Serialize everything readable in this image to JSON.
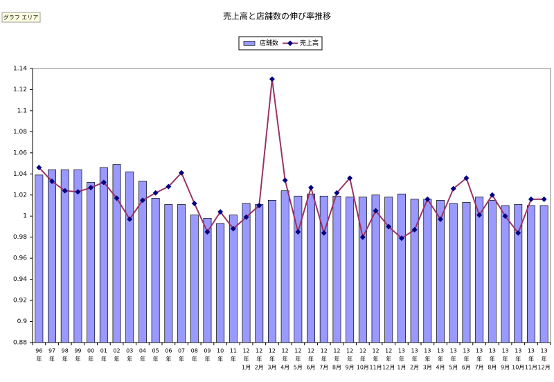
{
  "tooltip": "グラフ エリア",
  "chart_data": {
    "type": "combo",
    "title": "売上高と店舗数の伸び率推移",
    "categories": [
      [
        "96",
        "年"
      ],
      [
        "97",
        "年"
      ],
      [
        "98",
        "年"
      ],
      [
        "99",
        "年"
      ],
      [
        "00",
        "年"
      ],
      [
        "01",
        "年"
      ],
      [
        "02",
        "年"
      ],
      [
        "03",
        "年"
      ],
      [
        "04",
        "年"
      ],
      [
        "05",
        "年"
      ],
      [
        "06",
        "年"
      ],
      [
        "07",
        "年"
      ],
      [
        "08",
        "年"
      ],
      [
        "09",
        "年"
      ],
      [
        "10",
        "年"
      ],
      [
        "11",
        "年"
      ],
      [
        "12",
        "年",
        "1月"
      ],
      [
        "12",
        "年",
        "2月"
      ],
      [
        "12",
        "年",
        "3月"
      ],
      [
        "12",
        "年",
        "4月"
      ],
      [
        "12",
        "年",
        "5月"
      ],
      [
        "12",
        "年",
        "6月"
      ],
      [
        "12",
        "年",
        "7月"
      ],
      [
        "12",
        "年",
        "8月"
      ],
      [
        "12",
        "年",
        "9月"
      ],
      [
        "12",
        "年",
        "10月"
      ],
      [
        "12",
        "年",
        "11月"
      ],
      [
        "12",
        "年",
        "12月"
      ],
      [
        "13",
        "年",
        "1月"
      ],
      [
        "13",
        "年",
        "2月"
      ],
      [
        "13",
        "年",
        "3月"
      ],
      [
        "13",
        "年",
        "4月"
      ],
      [
        "13",
        "年",
        "5月"
      ],
      [
        "13",
        "年",
        "6月"
      ],
      [
        "13",
        "年",
        "7月"
      ],
      [
        "13",
        "年",
        "8月"
      ],
      [
        "13",
        "年",
        "9月"
      ],
      [
        "13",
        "年",
        "10月"
      ],
      [
        "13",
        "年",
        "11月"
      ],
      [
        "13",
        "年",
        "12月"
      ]
    ],
    "series": [
      {
        "name": "店舗数",
        "type": "bar",
        "color": "#9999ff",
        "values": [
          1.039,
          1.044,
          1.044,
          1.044,
          1.032,
          1.046,
          1.049,
          1.042,
          1.033,
          1.017,
          1.011,
          1.011,
          1.001,
          0.998,
          0.993,
          1.001,
          1.012,
          1.011,
          1.015,
          1.024,
          1.019,
          1.021,
          1.019,
          1.019,
          1.018,
          1.018,
          1.02,
          1.018,
          1.021,
          1.016,
          1.016,
          1.015,
          1.012,
          1.013,
          1.018,
          1.015,
          1.01,
          1.011,
          1.01,
          1.01
        ]
      },
      {
        "name": "売上高",
        "type": "line",
        "color": "#993366",
        "marker_color": "#000080",
        "values": [
          1.046,
          1.033,
          1.024,
          1.023,
          1.027,
          1.032,
          1.017,
          0.997,
          1.015,
          1.022,
          1.028,
          1.041,
          1.012,
          0.985,
          1.004,
          0.988,
          0.999,
          1.01,
          1.13,
          1.034,
          0.985,
          1.027,
          0.984,
          1.022,
          1.036,
          0.98,
          1.005,
          0.99,
          0.979,
          0.987,
          1.016,
          0.997,
          1.026,
          1.036,
          1.001,
          1.02,
          1.0,
          0.984,
          1.016,
          1.016
        ]
      }
    ],
    "ylim": [
      0.88,
      1.14
    ],
    "yticks": [
      0.88,
      0.9,
      0.92,
      0.94,
      0.96,
      0.98,
      1,
      1.02,
      1.04,
      1.06,
      1.08,
      1.1,
      1.12,
      1.14
    ],
    "grid": false
  }
}
